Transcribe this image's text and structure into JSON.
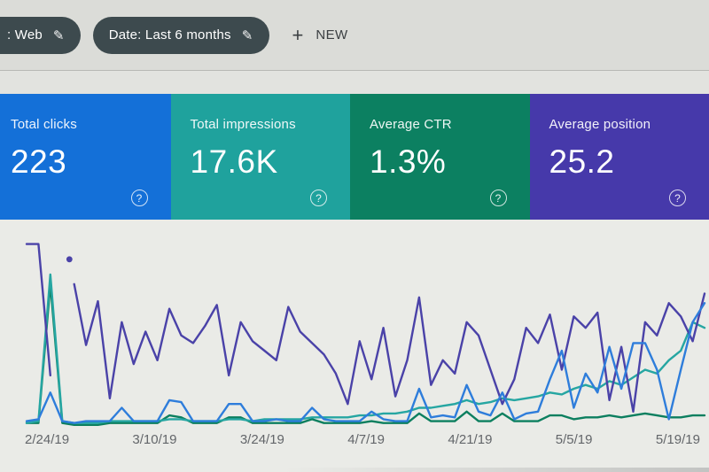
{
  "colors": {
    "chip_bg": "#3d4a4e",
    "header_bg": "#dbdcd8",
    "chart_bg": "#eaebe7",
    "clicks_blue": "#1470d8",
    "impressions_teal": "#1fa29d",
    "ctr_green": "#0c8061",
    "position_purple": "#4639aa"
  },
  "icons": {
    "pencil": "✎",
    "plus": "+",
    "help": "?"
  },
  "header": {
    "filter_chips": [
      {
        "label": ": Web"
      },
      {
        "label": "Date: Last 6 months"
      }
    ],
    "new_button_label": "NEW"
  },
  "cards": [
    {
      "label": "Total clicks",
      "value": "223",
      "color": "#1470d8"
    },
    {
      "label": "Total impressions",
      "value": "17.6K",
      "color": "#1fa29d"
    },
    {
      "label": "Average CTR",
      "value": "1.3%",
      "color": "#0c8061"
    },
    {
      "label": "Average position",
      "value": "25.2",
      "color": "#4639aa"
    }
  ],
  "chart_data": {
    "type": "line",
    "title": "Search performance over time (no on-screen title)",
    "x_ticks": [
      "2/24/19",
      "3/10/19",
      "3/24/19",
      "4/7/19",
      "4/21/19",
      "5/5/19",
      "5/19/19"
    ],
    "y_axis": "no y-axis shown; each series independently scaled, values below are % of plot height (0 = baseline, 100 = top)",
    "grid": false,
    "legend": "none shown (colors match metric cards)",
    "series": [
      {
        "name": "Average CTR",
        "color": "#0c7f5f",
        "values": [
          2,
          2,
          75,
          2,
          1,
          1,
          1,
          2,
          2,
          2,
          2,
          2,
          6,
          5,
          2,
          2,
          2,
          5,
          5,
          2,
          2,
          2,
          2,
          2,
          4,
          2,
          2,
          2,
          2,
          3,
          2,
          2,
          2,
          7,
          3,
          3,
          3,
          8,
          3,
          3,
          7,
          3,
          3,
          3,
          6,
          6,
          4,
          5,
          5,
          6,
          5,
          6,
          7,
          6,
          5,
          5,
          6,
          6
        ]
      },
      {
        "name": "Total impressions",
        "color": "#26a6a2",
        "values": [
          2,
          3,
          80,
          3,
          2,
          2,
          2,
          3,
          3,
          3,
          3,
          3,
          4,
          4,
          3,
          3,
          3,
          4,
          4,
          3,
          4,
          4,
          4,
          4,
          5,
          5,
          5,
          5,
          6,
          6,
          7,
          7,
          8,
          10,
          10,
          11,
          12,
          14,
          12,
          13,
          15,
          14,
          15,
          16,
          18,
          17,
          20,
          22,
          20,
          24,
          22,
          26,
          30,
          28,
          35,
          40,
          55,
          52
        ]
      },
      {
        "name": "Average position",
        "color": "#4a42a8",
        "values": [
          96,
          96,
          27,
          null,
          75,
          43,
          66,
          15,
          55,
          33,
          50,
          35,
          62,
          48,
          44,
          53,
          64,
          27,
          55,
          45,
          40,
          35,
          63,
          50,
          44,
          38,
          28,
          12,
          45,
          25,
          52,
          16,
          35,
          68,
          22,
          35,
          28,
          55,
          48,
          30,
          12,
          25,
          52,
          44,
          59,
          30,
          58,
          52,
          60,
          14,
          42,
          8,
          55,
          48,
          65,
          58,
          45,
          70
        ]
      },
      {
        "name": "Total clicks",
        "color": "#2e7ddb",
        "values": [
          3,
          4,
          18,
          3,
          2,
          3,
          3,
          3,
          10,
          3,
          3,
          3,
          14,
          13,
          3,
          3,
          3,
          12,
          12,
          3,
          3,
          4,
          3,
          3,
          10,
          4,
          3,
          3,
          3,
          8,
          4,
          3,
          3,
          20,
          5,
          6,
          5,
          22,
          8,
          6,
          18,
          4,
          7,
          8,
          25,
          40,
          10,
          28,
          18,
          42,
          20,
          44,
          44,
          30,
          4,
          30,
          55,
          65
        ]
      }
    ],
    "gap_dot": {
      "series": "Average position",
      "x_index": 3.6,
      "value": 88
    }
  }
}
